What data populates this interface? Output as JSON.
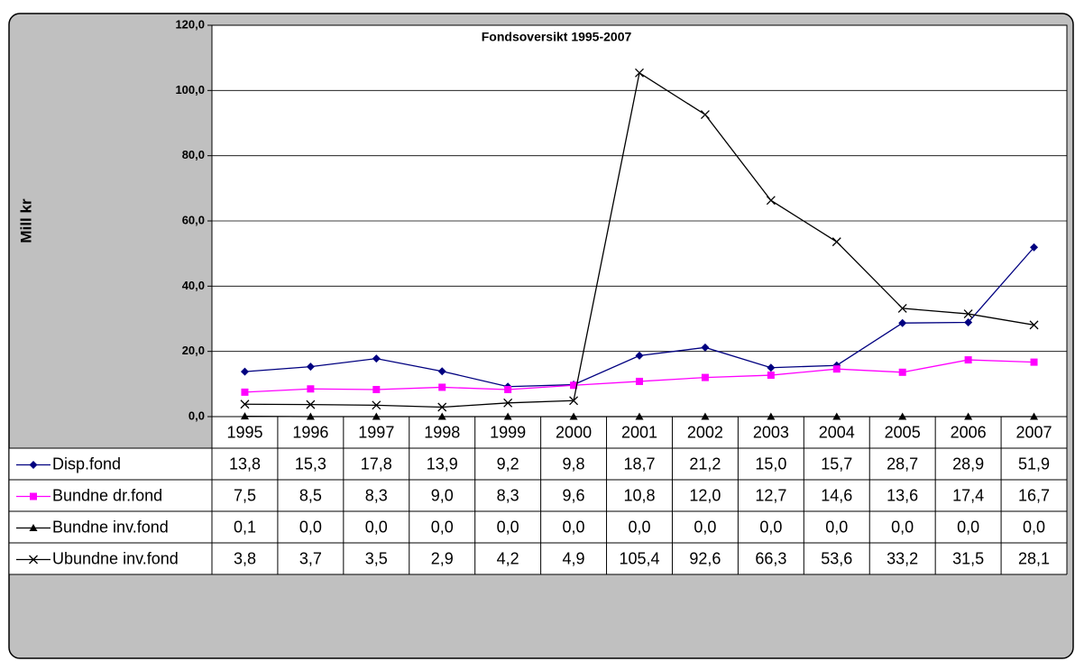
{
  "chart_data": {
    "type": "line",
    "title": "Fondsoversikt 1995-2007",
    "y_label": "Mill kr",
    "categories": [
      "1995",
      "1996",
      "1997",
      "1998",
      "1999",
      "2000",
      "2001",
      "2002",
      "2003",
      "2004",
      "2005",
      "2006",
      "2007"
    ],
    "ylim": [
      0,
      120
    ],
    "yticks": [
      {
        "value": 0,
        "label": "0,0"
      },
      {
        "value": 20,
        "label": "20,0"
      },
      {
        "value": 40,
        "label": "40,0"
      },
      {
        "value": 60,
        "label": "60,0"
      },
      {
        "value": 80,
        "label": "80,0"
      },
      {
        "value": 100,
        "label": "100,0"
      },
      {
        "value": 120,
        "label": "120,0"
      }
    ],
    "grid": true,
    "series": [
      {
        "name": "Disp.fond",
        "color": "#000080",
        "marker": "diamond",
        "values": [
          13.8,
          15.3,
          17.8,
          13.9,
          9.2,
          9.8,
          18.7,
          21.2,
          15.0,
          15.7,
          28.7,
          28.9,
          51.9
        ],
        "value_labels": [
          "13,8",
          "15,3",
          "17,8",
          "13,9",
          "9,2",
          "9,8",
          "18,7",
          "21,2",
          "15,0",
          "15,7",
          "28,7",
          "28,9",
          "51,9"
        ]
      },
      {
        "name": "Bundne dr.fond",
        "color": "#ff00ff",
        "marker": "square",
        "values": [
          7.5,
          8.5,
          8.3,
          9.0,
          8.3,
          9.6,
          10.8,
          12.0,
          12.7,
          14.6,
          13.6,
          17.4,
          16.7
        ],
        "value_labels": [
          "7,5",
          "8,5",
          "8,3",
          "9,0",
          "8,3",
          "9,6",
          "10,8",
          "12,0",
          "12,7",
          "14,6",
          "13,6",
          "17,4",
          "16,7"
        ]
      },
      {
        "name": "Bundne inv.fond",
        "color": "#000000",
        "marker": "triangle",
        "values": [
          0.1,
          0.0,
          0.0,
          0.0,
          0.0,
          0.0,
          0.0,
          0.0,
          0.0,
          0.0,
          0.0,
          0.0,
          0.0
        ],
        "value_labels": [
          "0,1",
          "0,0",
          "0,0",
          "0,0",
          "0,0",
          "0,0",
          "0,0",
          "0,0",
          "0,0",
          "0,0",
          "0,0",
          "0,0",
          "0,0"
        ]
      },
      {
        "name": "Ubundne inv.fond",
        "color": "#000000",
        "marker": "x",
        "values": [
          3.8,
          3.7,
          3.5,
          2.9,
          4.2,
          4.9,
          105.4,
          92.6,
          66.3,
          53.6,
          33.2,
          31.5,
          28.1
        ],
        "value_labels": [
          "3,8",
          "3,7",
          "3,5",
          "2,9",
          "4,2",
          "4,9",
          "105,4",
          "92,6",
          "66,3",
          "53,6",
          "33,2",
          "31,5",
          "28,1"
        ]
      }
    ]
  }
}
